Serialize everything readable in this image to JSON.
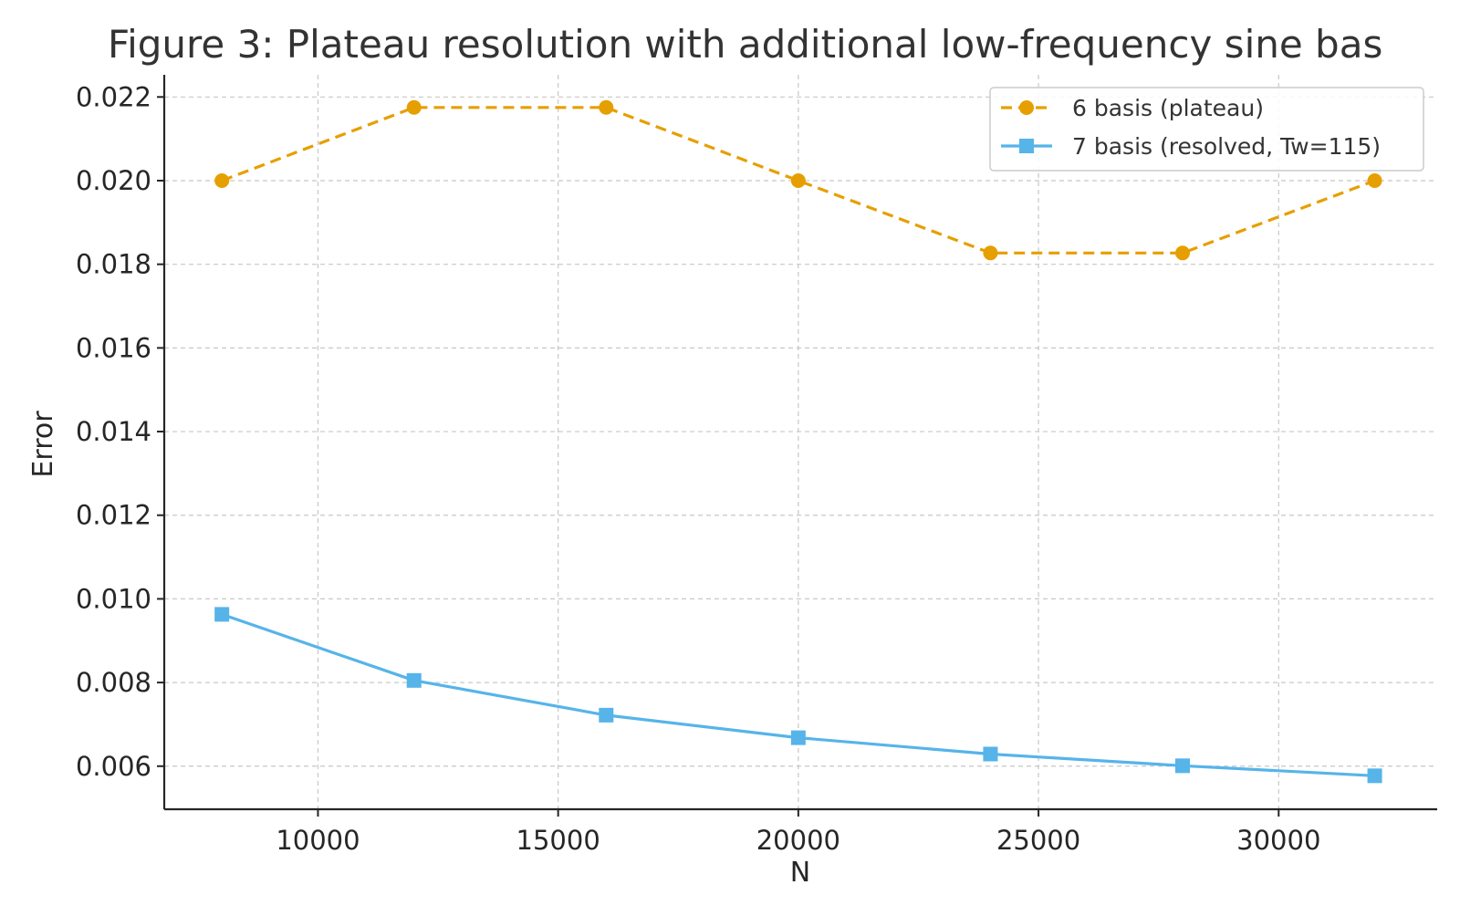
{
  "chart_data": {
    "type": "line",
    "title": "Figure 3: Plateau resolution with additional low-frequency sine bas",
    "xlabel": "N",
    "ylabel": "Error",
    "x": [
      8000,
      12000,
      16000,
      20000,
      24000,
      28000,
      32000
    ],
    "xlim": [
      6800,
      33300
    ],
    "ylim": [
      0.00497,
      0.02253
    ],
    "x_ticks": [
      10000,
      15000,
      20000,
      25000,
      30000
    ],
    "x_tick_labels": [
      "10000",
      "15000",
      "20000",
      "25000",
      "30000"
    ],
    "y_ticks": [
      0.006,
      0.008,
      0.01,
      0.012,
      0.014,
      0.016,
      0.018,
      0.02,
      0.022
    ],
    "y_tick_labels": [
      "0.006",
      "0.008",
      "0.010",
      "0.012",
      "0.014",
      "0.016",
      "0.018",
      "0.020",
      "0.022"
    ],
    "grid": true,
    "legend_position": "top-right",
    "series": [
      {
        "name": "6 basis (plateau)",
        "values": [
          0.02,
          0.02175,
          0.02175,
          0.02,
          0.01827,
          0.01827,
          0.02
        ],
        "color": "#E69F00",
        "line_style": "dashed",
        "marker": "circle"
      },
      {
        "name": "7 basis (resolved, Tw=115)",
        "values": [
          0.00963,
          0.00805,
          0.00722,
          0.00668,
          0.00629,
          0.00601,
          0.00577
        ],
        "color": "#56B4E9",
        "line_style": "solid",
        "marker": "square"
      }
    ]
  }
}
